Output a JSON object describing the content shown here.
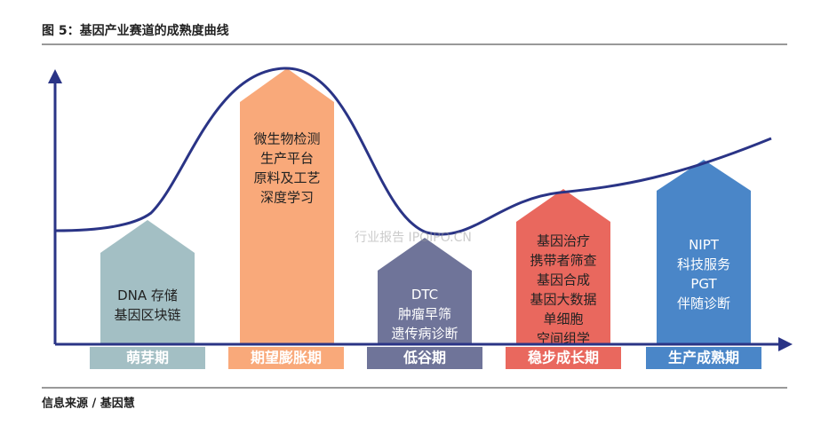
{
  "header": {
    "title": "图 5：基因产业赛道的成熟度曲线"
  },
  "stages": [
    {
      "label": "萌芽期",
      "items": [
        "DNA 存储",
        "基因区块链"
      ]
    },
    {
      "label": "期望膨胀期",
      "items": [
        "微生物检测",
        "生产平台",
        "原料及工艺",
        "深度学习"
      ]
    },
    {
      "label": "低谷期",
      "items": [
        "DTC",
        "肿瘤早筛",
        "遗传病诊断"
      ]
    },
    {
      "label": "稳步成长期",
      "items": [
        "基因治疗",
        "携带者筛查",
        "基因合成",
        "基因大数据",
        "单细胞",
        "空间组学"
      ]
    },
    {
      "label": "生产成熟期",
      "items": [
        "NIPT",
        "科技服务",
        "PGT",
        "伴随诊断"
      ]
    }
  ],
  "watermark": "行业报告 IPOIPO.CN",
  "footer": {
    "source": "信息来源 / 基因慧"
  }
}
